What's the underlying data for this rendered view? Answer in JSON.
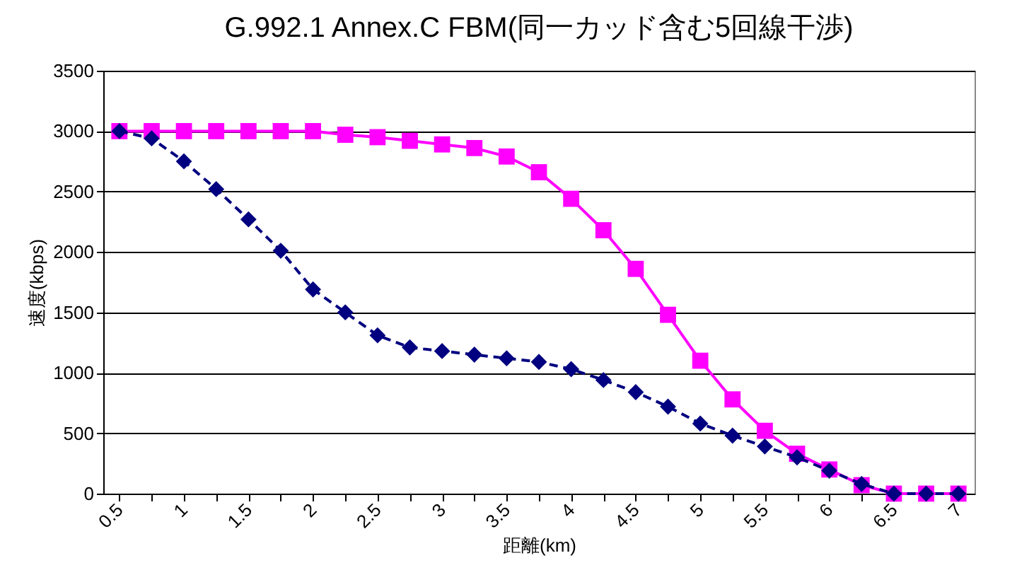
{
  "chart_data": {
    "type": "line",
    "title": "G.992.1 Annex.C FBM(同一カッド含む5回線干渉)",
    "xlabel": "距離(km)",
    "ylabel": "速度(kbps)",
    "categories": [
      "0.5",
      null,
      "1",
      null,
      "1.5",
      null,
      "2",
      null,
      "2.5",
      null,
      "3",
      null,
      "3.5",
      null,
      "4",
      null,
      "4.5",
      null,
      "5",
      null,
      "5.5",
      null,
      "6",
      null,
      "6.5",
      null,
      "7"
    ],
    "series": [
      {
        "color": "#ff00ff",
        "marker": "square",
        "line_style": "solid",
        "values": [
          3000,
          3000,
          3000,
          3000,
          3000,
          3000,
          3000,
          2970,
          2950,
          2920,
          2890,
          2860,
          2790,
          2660,
          2440,
          2180,
          1860,
          1480,
          1100,
          780,
          520,
          330,
          200,
          70,
          0,
          0,
          0
        ]
      },
      {
        "color": "#000080",
        "marker": "diamond",
        "line_style": "dashed",
        "values": [
          3000,
          2940,
          2750,
          2520,
          2270,
          2010,
          1690,
          1500,
          1310,
          1210,
          1180,
          1150,
          1120,
          1090,
          1030,
          940,
          840,
          720,
          580,
          480,
          390,
          300,
          190,
          80,
          0,
          0,
          0
        ]
      }
    ],
    "ylim": [
      0,
      3500
    ],
    "yticks": [
      0,
      500,
      1000,
      1500,
      2000,
      2500,
      3000,
      3500
    ],
    "grid": "y"
  }
}
